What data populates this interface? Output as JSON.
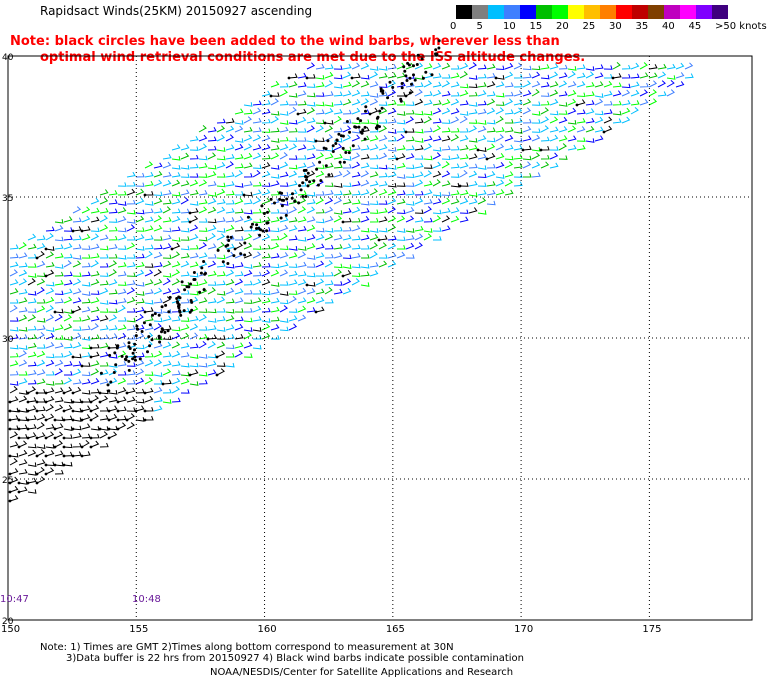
{
  "title": "Rapidsact Winds(25KM) 20150927 ascending",
  "note": {
    "line1": "Note: black circles have been added to the wind barbs, wherever less than",
    "line2": "optimal wind retrieval conditions are met due to the ISS altitude changes."
  },
  "color_scale": {
    "colors": [
      "#000000",
      "#7f7f7f",
      "#00bfff",
      "#3f7fff",
      "#0000ff",
      "#00bf00",
      "#00ff00",
      "#ffff00",
      "#ffbf00",
      "#ff7f00",
      "#ff0000",
      "#bf0000",
      "#7f3f00",
      "#bf00bf",
      "#ff00ff",
      "#7f00ff",
      "#3f007f"
    ],
    "labels": [
      "0",
      "5",
      "10",
      "15",
      "20",
      "25",
      "30",
      "35",
      "40",
      "45",
      ">50 knots"
    ]
  },
  "axes": {
    "lat_labels": [
      "40",
      "35",
      "30",
      "25",
      "20"
    ],
    "lon_labels": [
      "150",
      "155",
      "160",
      "165",
      "170",
      "175"
    ]
  },
  "times": [
    {
      "label": "10:47"
    },
    {
      "label": "10:48"
    }
  ],
  "footer": {
    "line1": "Note: 1) Times are GMT 2)Times along bottom correspond to measurement at 30N",
    "line2": "3)Data buffer is 22 hrs from 20150927 4) Black wind barbs indicate possible contamination",
    "line3": "NOAA/NESDIS/Center for Satellite Applications and Research"
  }
}
